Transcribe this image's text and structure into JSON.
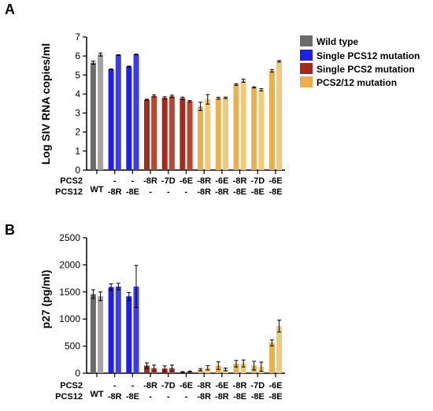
{
  "panels": [
    {
      "letter": "A"
    },
    {
      "letter": "B"
    }
  ],
  "legend": [
    {
      "label": "Wild type",
      "color": "#6b6b6b"
    },
    {
      "label": "Single PCS12 mutation",
      "color": "#1f1fe6"
    },
    {
      "label": "Single PCS2 mutation",
      "color": "#a52a1e"
    },
    {
      "label": "PCS2/12 mutation",
      "color": "#e8b04e"
    }
  ],
  "group_colors": {
    "wt": "#6b6b6b",
    "wt_light": "#a3a3a3",
    "pcs12": "#1f1fe6",
    "pcs12_light": "#3b3bf2",
    "pcs2": "#a52a1e",
    "pcs2_light": "#b8452f",
    "pcs212": "#e8b04e",
    "pcs212_light": "#f0c97a"
  },
  "row_labels": {
    "pcs2": "PCS2",
    "pcs12": "PCS12"
  },
  "groups": [
    {
      "type": "wt",
      "pcs2": "WT",
      "pcs12": ""
    },
    {
      "type": "pcs12",
      "pcs2": "-",
      "pcs12": "-8R"
    },
    {
      "type": "pcs12",
      "pcs2": "-",
      "pcs12": "-8E"
    },
    {
      "type": "pcs2",
      "pcs2": "-8R",
      "pcs12": "-"
    },
    {
      "type": "pcs2",
      "pcs2": "-7D",
      "pcs12": "-"
    },
    {
      "type": "pcs2",
      "pcs2": "-6E",
      "pcs12": "-"
    },
    {
      "type": "pcs212",
      "pcs2": "-8R",
      "pcs12": "-8R"
    },
    {
      "type": "pcs212",
      "pcs2": "-6E",
      "pcs12": "-8R"
    },
    {
      "type": "pcs212",
      "pcs2": "-8R",
      "pcs12": "-8E"
    },
    {
      "type": "pcs212",
      "pcs2": "-7D",
      "pcs12": "-8E"
    },
    {
      "type": "pcs212",
      "pcs2": "-6E",
      "pcs12": "-8E"
    }
  ],
  "chart_data": [
    {
      "type": "bar",
      "panel": "A",
      "ylabel": "Log SIV RNA copies/ml",
      "ylim": [
        0,
        7
      ],
      "yticks": [
        0,
        1,
        2,
        3,
        4,
        5,
        6,
        7
      ],
      "values": [
        [
          5.65,
          6.08
        ],
        [
          5.3,
          6.05
        ],
        [
          5.45,
          6.08
        ],
        [
          3.7,
          3.9
        ],
        [
          3.8,
          3.88
        ],
        [
          3.78,
          3.62
        ],
        [
          3.35,
          3.72
        ],
        [
          3.78,
          3.8
        ],
        [
          4.5,
          4.7
        ],
        [
          4.35,
          4.22
        ],
        [
          5.22,
          5.72
        ]
      ],
      "errors": [
        [
          0.08,
          0.08
        ],
        [
          0.02,
          0.02
        ],
        [
          0.02,
          0.02
        ],
        [
          0.03,
          0.06
        ],
        [
          0.06,
          0.06
        ],
        [
          0.06,
          0.04
        ],
        [
          0.22,
          0.25
        ],
        [
          0.05,
          0.04
        ],
        [
          0.04,
          0.08
        ],
        [
          0.03,
          0.06
        ],
        [
          0.07,
          0.04
        ]
      ]
    },
    {
      "type": "bar",
      "panel": "B",
      "ylabel": "p27 (pg/ml)",
      "ylim": [
        0,
        2500
      ],
      "yticks": [
        0,
        500,
        1000,
        1500,
        2000,
        2500
      ],
      "values": [
        [
          1460,
          1420
        ],
        [
          1590,
          1600
        ],
        [
          1420,
          1600
        ],
        [
          140,
          95
        ],
        [
          85,
          95
        ],
        [
          20,
          30
        ],
        [
          65,
          100
        ],
        [
          140,
          70
        ],
        [
          175,
          180
        ],
        [
          140,
          120
        ],
        [
          560,
          870
        ]
      ],
      "errors": [
        [
          80,
          80
        ],
        [
          60,
          60
        ],
        [
          70,
          390
        ],
        [
          50,
          55
        ],
        [
          50,
          55
        ],
        [
          10,
          10
        ],
        [
          20,
          40
        ],
        [
          70,
          25
        ],
        [
          60,
          65
        ],
        [
          80,
          85
        ],
        [
          55,
          110
        ]
      ]
    }
  ]
}
